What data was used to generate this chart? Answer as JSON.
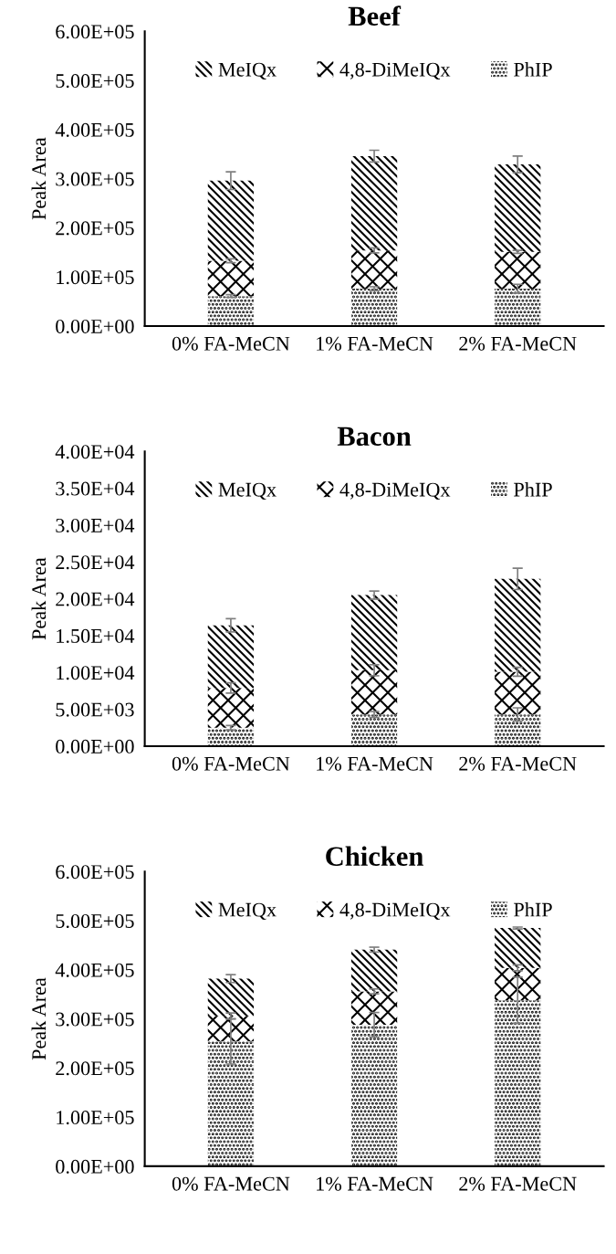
{
  "chart_data": [
    {
      "type": "bar",
      "stacked": true,
      "title": "Beef",
      "ylabel": "Peak Area",
      "legend": "top",
      "grid": false,
      "categories": [
        "0% FA-MeCN",
        "1% FA-MeCN",
        "2% FA-MeCN"
      ],
      "ylim": [
        0,
        600000
      ],
      "yticks": [
        {
          "value": 0,
          "label": "0.00E+00"
        },
        {
          "value": 100000,
          "label": "1.00E+05"
        },
        {
          "value": 200000,
          "label": "2.00E+05"
        },
        {
          "value": 300000,
          "label": "3.00E+05"
        },
        {
          "value": 400000,
          "label": "4.00E+05"
        },
        {
          "value": 500000,
          "label": "5.00E+05"
        },
        {
          "value": 600000,
          "label": "6.00E+05"
        }
      ],
      "series": [
        {
          "name": "PhIP",
          "color": "#000000",
          "values": [
            61000,
            76000,
            76000
          ],
          "errors": [
            3000,
            4000,
            9000
          ]
        },
        {
          "name": "4,8-DiMeIQx",
          "color": "#000000",
          "values": [
            72000,
            78000,
            75000
          ],
          "errors": [
            4000,
            5000,
            3000
          ]
        },
        {
          "name": "MeIQx",
          "color": "#000000",
          "values": [
            163000,
            192000,
            178000
          ],
          "errors": [
            18000,
            12000,
            17000
          ]
        }
      ]
    },
    {
      "type": "bar",
      "stacked": true,
      "title": "Bacon",
      "ylabel": "Peak Area",
      "legend": "top",
      "grid": false,
      "categories": [
        "0% FA-MeCN",
        "1% FA-MeCN",
        "2% FA-MeCN"
      ],
      "ylim": [
        0,
        40000
      ],
      "yticks": [
        {
          "value": 0,
          "label": "0.00E+00"
        },
        {
          "value": 5000,
          "label": "5.00E+03"
        },
        {
          "value": 10000,
          "label": "1.00E+04"
        },
        {
          "value": 15000,
          "label": "1.50E+04"
        },
        {
          "value": 20000,
          "label": "2.00E+04"
        },
        {
          "value": 25000,
          "label": "2.50E+04"
        },
        {
          "value": 30000,
          "label": "3.00E+04"
        },
        {
          "value": 35000,
          "label": "3.50E+04"
        },
        {
          "value": 40000,
          "label": "4.00E+04"
        }
      ],
      "series": [
        {
          "name": "PhIP",
          "color": "#000000",
          "values": [
            2500,
            4300,
            4300
          ],
          "errors": [
            300,
            400,
            900
          ]
        },
        {
          "name": "4,8-DiMeIQx",
          "color": "#000000",
          "values": [
            5400,
            6000,
            5800
          ],
          "errors": [
            700,
            750,
            600
          ]
        },
        {
          "name": "MeIQx",
          "color": "#000000",
          "values": [
            8500,
            10200,
            12600
          ],
          "errors": [
            900,
            550,
            1450
          ]
        }
      ]
    },
    {
      "type": "bar",
      "stacked": true,
      "title": "Chicken",
      "ylabel": "Peak Area",
      "legend": "top",
      "grid": false,
      "categories": [
        "0% FA-MeCN",
        "1% FA-MeCN",
        "2% FA-MeCN"
      ],
      "ylim": [
        0,
        600000
      ],
      "yticks": [
        {
          "value": 0,
          "label": "0.00E+00"
        },
        {
          "value": 100000,
          "label": "1.00E+05"
        },
        {
          "value": 200000,
          "label": "2.00E+05"
        },
        {
          "value": 300000,
          "label": "3.00E+05"
        },
        {
          "value": 400000,
          "label": "4.00E+05"
        },
        {
          "value": 500000,
          "label": "5.00E+05"
        },
        {
          "value": 600000,
          "label": "6.00E+05"
        }
      ],
      "series": [
        {
          "name": "PhIP",
          "color": "#000000",
          "values": [
            254000,
            288000,
            338000
          ],
          "errors": [
            46000,
            25000,
            47000
          ]
        },
        {
          "name": "4,8-DiMeIQx",
          "color": "#000000",
          "values": [
            52000,
            68000,
            66000
          ],
          "errors": [
            6000,
            5000,
            6000
          ]
        },
        {
          "name": "MeIQx",
          "color": "#000000",
          "values": [
            76000,
            85000,
            81000
          ],
          "errors": [
            8000,
            5000,
            2000
          ]
        }
      ]
    }
  ]
}
